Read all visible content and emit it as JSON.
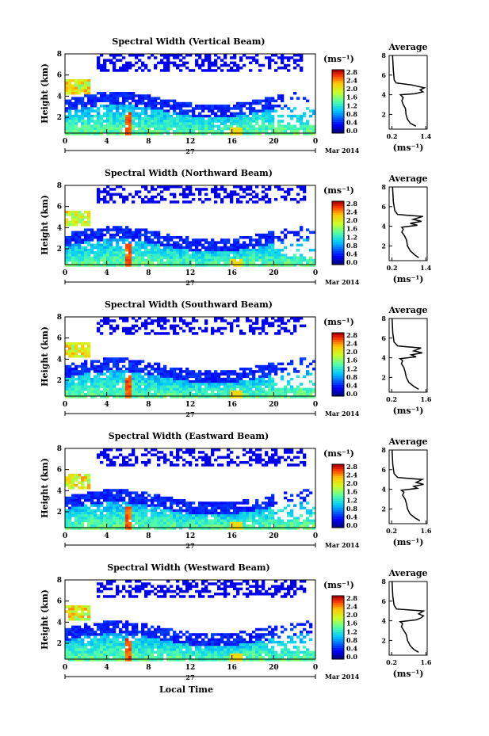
{
  "chart_data": [
    {
      "type": "heatmap",
      "title": "Spectral Width (Vertical Beam)",
      "ylabel": "Height (km)",
      "x_ticks": [
        "0",
        "4",
        "8",
        "12",
        "16",
        "20",
        "0"
      ],
      "y_ticks": [
        "2",
        "4",
        "6",
        "8"
      ],
      "date_day": "27",
      "date_label": "Mar 2014",
      "colorbar": {
        "unit": "(ms⁻¹)",
        "ticks": [
          "0.0",
          "0.4",
          "0.8",
          "1.2",
          "1.6",
          "2.0",
          "2.4",
          "2.8"
        ]
      },
      "profile": {
        "title": "Average",
        "xlabel": "(ms⁻¹)",
        "x_ticks": [
          "0.2",
          "1.4"
        ],
        "y_ticks": [
          "2",
          "4",
          "6",
          "8"
        ],
        "x": [
          1.05,
          0.85,
          0.75,
          0.7,
          0.68,
          0.6,
          0.55,
          0.6,
          0.5,
          1.0,
          1.3,
          1.2,
          1.35,
          0.9,
          0.35,
          0.28,
          0.25,
          0.22
        ],
        "y": [
          0.8,
          1.1,
          1.5,
          2.0,
          2.6,
          3.0,
          3.4,
          3.7,
          4.0,
          4.1,
          4.3,
          4.5,
          4.7,
          5.0,
          5.2,
          5.5,
          6.5,
          8.0
        ]
      }
    },
    {
      "type": "heatmap",
      "title": "Spectral Width (Northward Beam)",
      "ylabel": "Height (km)",
      "x_ticks": [
        "0",
        "4",
        "8",
        "12",
        "16",
        "20",
        "0"
      ],
      "y_ticks": [
        "2",
        "4",
        "6",
        "8"
      ],
      "date_day": "27",
      "date_label": "Mar 2014",
      "colorbar": {
        "unit": "(ms⁻¹)",
        "ticks": [
          "0.0",
          "0.4",
          "0.8",
          "1.2",
          "1.6",
          "2.0",
          "2.4",
          "2.8"
        ]
      },
      "profile": {
        "title": "Average",
        "xlabel": "(ms⁻¹)",
        "x_ticks": [
          "0.2",
          "1.4"
        ],
        "y_ticks": [
          "2",
          "4",
          "6",
          "8"
        ],
        "x": [
          1.15,
          1.0,
          0.85,
          0.75,
          0.72,
          0.65,
          0.55,
          0.6,
          0.55,
          1.1,
          0.85,
          1.25,
          0.95,
          1.3,
          0.4,
          0.3,
          0.25,
          0.22
        ],
        "y": [
          0.8,
          1.1,
          1.5,
          2.0,
          2.6,
          3.0,
          3.4,
          3.7,
          3.9,
          4.1,
          4.3,
          4.5,
          4.7,
          5.0,
          5.2,
          5.6,
          6.5,
          8.0
        ]
      }
    },
    {
      "type": "heatmap",
      "title": "Spectral Width (Southward Beam)",
      "ylabel": "Height (km)",
      "x_ticks": [
        "0",
        "4",
        "8",
        "12",
        "16",
        "20",
        "0"
      ],
      "y_ticks": [
        "2",
        "4",
        "6",
        "8"
      ],
      "date_day": "27",
      "date_label": "Mar 2014",
      "colorbar": {
        "unit": "(ms⁻¹)",
        "ticks": [
          "0.0",
          "0.4",
          "0.8",
          "1.2",
          "1.6",
          "2.0",
          "2.4",
          "2.8"
        ]
      },
      "profile": {
        "title": "Average",
        "xlabel": "(ms⁻¹)",
        "x_ticks": [
          "0.2",
          "1.6"
        ],
        "y_ticks": [
          "2",
          "4",
          "6",
          "8"
        ],
        "x": [
          1.3,
          1.1,
          0.9,
          0.8,
          0.75,
          0.7,
          0.6,
          0.65,
          0.55,
          1.2,
          1.0,
          1.45,
          1.1,
          1.4,
          0.45,
          0.3,
          0.25,
          0.22
        ],
        "y": [
          0.8,
          1.1,
          1.5,
          2.0,
          2.6,
          3.0,
          3.4,
          3.7,
          3.9,
          4.1,
          4.3,
          4.5,
          4.7,
          5.0,
          5.2,
          5.6,
          6.5,
          8.0
        ]
      }
    },
    {
      "type": "heatmap",
      "title": "Spectral Width (Eastward Beam)",
      "ylabel": "Height (km)",
      "x_ticks": [
        "0",
        "4",
        "8",
        "12",
        "16",
        "20",
        "0"
      ],
      "y_ticks": [
        "2",
        "4",
        "6",
        "8"
      ],
      "date_day": "27",
      "date_label": "Mar 2014",
      "colorbar": {
        "unit": "(ms⁻¹)",
        "ticks": [
          "0.0",
          "0.4",
          "0.8",
          "1.2",
          "1.6",
          "2.0",
          "2.4",
          "2.8"
        ]
      },
      "profile": {
        "title": "Average",
        "xlabel": "(ms⁻¹)",
        "x_ticks": [
          "0.2",
          "1.6"
        ],
        "y_ticks": [
          "2",
          "4",
          "6",
          "8"
        ],
        "x": [
          1.35,
          1.15,
          0.95,
          0.85,
          0.8,
          0.75,
          0.65,
          0.7,
          0.6,
          1.25,
          1.1,
          1.5,
          1.2,
          1.45,
          0.45,
          0.3,
          0.25,
          0.22
        ],
        "y": [
          0.8,
          1.1,
          1.5,
          2.0,
          2.6,
          3.0,
          3.4,
          3.7,
          3.9,
          4.1,
          4.3,
          4.5,
          4.7,
          5.0,
          5.2,
          5.6,
          6.5,
          8.0
        ]
      }
    },
    {
      "type": "heatmap",
      "title": "Spectral Width (Westward Beam)",
      "ylabel": "Height (km)",
      "xlabel": "Local Time",
      "x_ticks": [
        "0",
        "4",
        "8",
        "12",
        "16",
        "20",
        "0"
      ],
      "y_ticks": [
        "2",
        "4",
        "6",
        "8"
      ],
      "date_day": "27",
      "date_label": "Mar 2014",
      "colorbar": {
        "unit": "(ms⁻¹)",
        "ticks": [
          "0.0",
          "0.4",
          "0.8",
          "1.2",
          "1.6",
          "2.0",
          "2.4",
          "2.8"
        ]
      },
      "profile": {
        "title": "Average",
        "xlabel": "(ms⁻¹)",
        "x_ticks": [
          "0.2",
          "1.6"
        ],
        "y_ticks": [
          "2",
          "4",
          "6",
          "8"
        ],
        "x": [
          1.3,
          1.1,
          0.95,
          0.85,
          0.8,
          0.7,
          0.6,
          0.65,
          0.55,
          1.2,
          1.4,
          1.5,
          1.3,
          1.5,
          0.4,
          0.3,
          0.25,
          0.22
        ],
        "y": [
          0.8,
          1.1,
          1.5,
          2.0,
          2.6,
          3.0,
          3.4,
          3.7,
          3.9,
          4.1,
          4.3,
          4.5,
          4.7,
          5.0,
          5.2,
          5.6,
          6.5,
          8.0
        ]
      }
    }
  ]
}
